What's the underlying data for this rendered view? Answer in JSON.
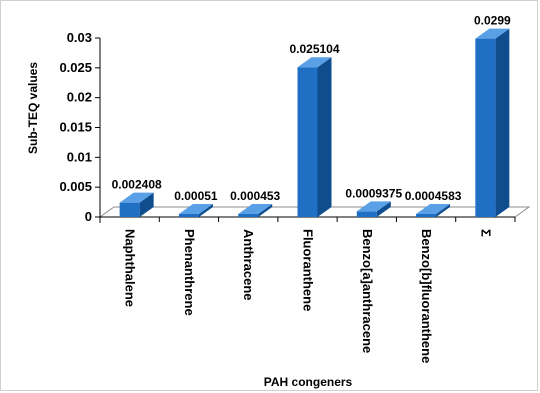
{
  "chart_data": {
    "type": "bar",
    "style": "3d-column",
    "categories": [
      "Naphthalene",
      "Phenanthrene",
      "Anthracene",
      "Fluoranthene",
      "Benzo[a]anthracene",
      "Benzo[b]fluoranthene",
      "Σ"
    ],
    "values": [
      0.002408,
      0.00051,
      0.000453,
      0.025104,
      0.0009375,
      0.0004583,
      0.0299
    ],
    "data_labels": [
      "0.002408",
      "0.00051",
      "0.000453",
      "0.025104",
      "0.0009375",
      "0.0004583",
      "0.0299"
    ],
    "ylabel": "Sub-TEQ values",
    "xlabel": "PAH congeners",
    "ylim": [
      0,
      0.03
    ],
    "yticks": [
      0,
      0.005,
      0.01,
      0.015,
      0.02,
      0.025,
      0.03
    ],
    "ytick_labels": [
      "0",
      "0.005",
      "0.01",
      "0.015",
      "0.02",
      "0.025",
      "0.03"
    ],
    "grid": false,
    "legend": "none",
    "colors": {
      "front": "#1f6fc5",
      "side": "#0f4d8f",
      "top": "#5aa0e6",
      "floor": "#ffffff",
      "floor_edge": "#8c8c8c"
    }
  }
}
